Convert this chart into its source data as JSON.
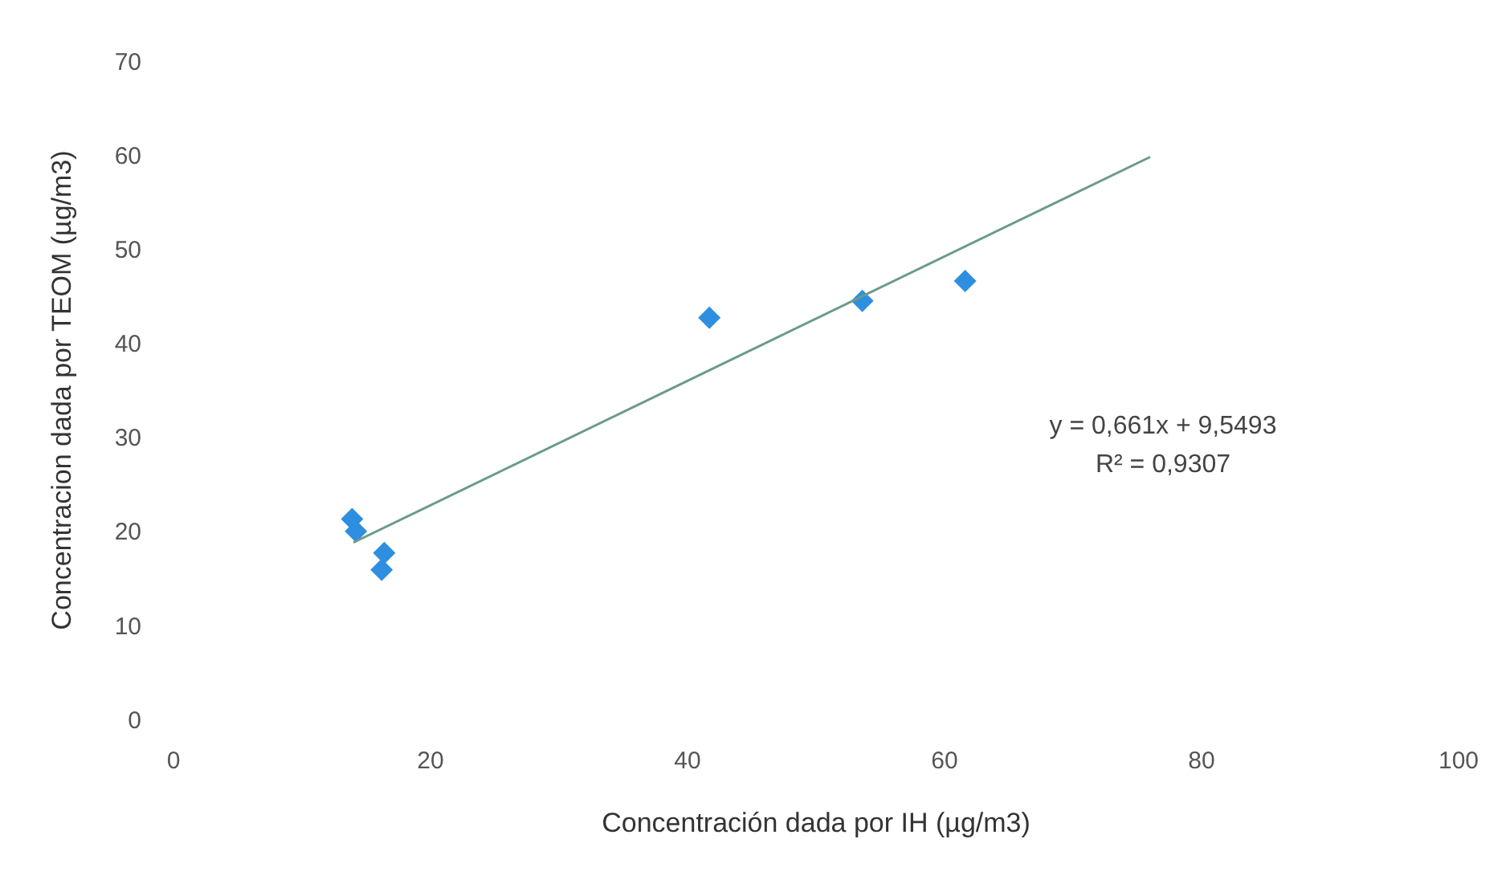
{
  "chart_data": {
    "type": "scatter",
    "xlabel": "Concentración dada por IH (µg/m3)",
    "ylabel": "Concentracion dada por TEOM (µg/m3)",
    "xlim": [
      0,
      100
    ],
    "xticks": [
      0,
      20,
      40,
      60,
      80,
      100
    ],
    "ylim": [
      0,
      70
    ],
    "yticks": [
      0,
      10,
      20,
      30,
      40,
      50,
      60,
      70
    ],
    "marker": "diamond",
    "series": [
      {
        "color": "#2e8fe0",
        "x": [
          13.9,
          14.2,
          16.4,
          16.2,
          41.7,
          53.6,
          61.6
        ],
        "values": [
          21.3,
          20.0,
          17.7,
          15.9,
          42.7,
          44.5,
          46.6
        ]
      },
      {
        "type": "line",
        "color": "#6a9a8a",
        "x": [
          14,
          76
        ],
        "values": [
          18.8,
          59.8
        ],
        "marker": "none"
      }
    ],
    "annotations": [
      "y = 0,661x + 9,5493",
      "R² = 0,9307"
    ]
  }
}
